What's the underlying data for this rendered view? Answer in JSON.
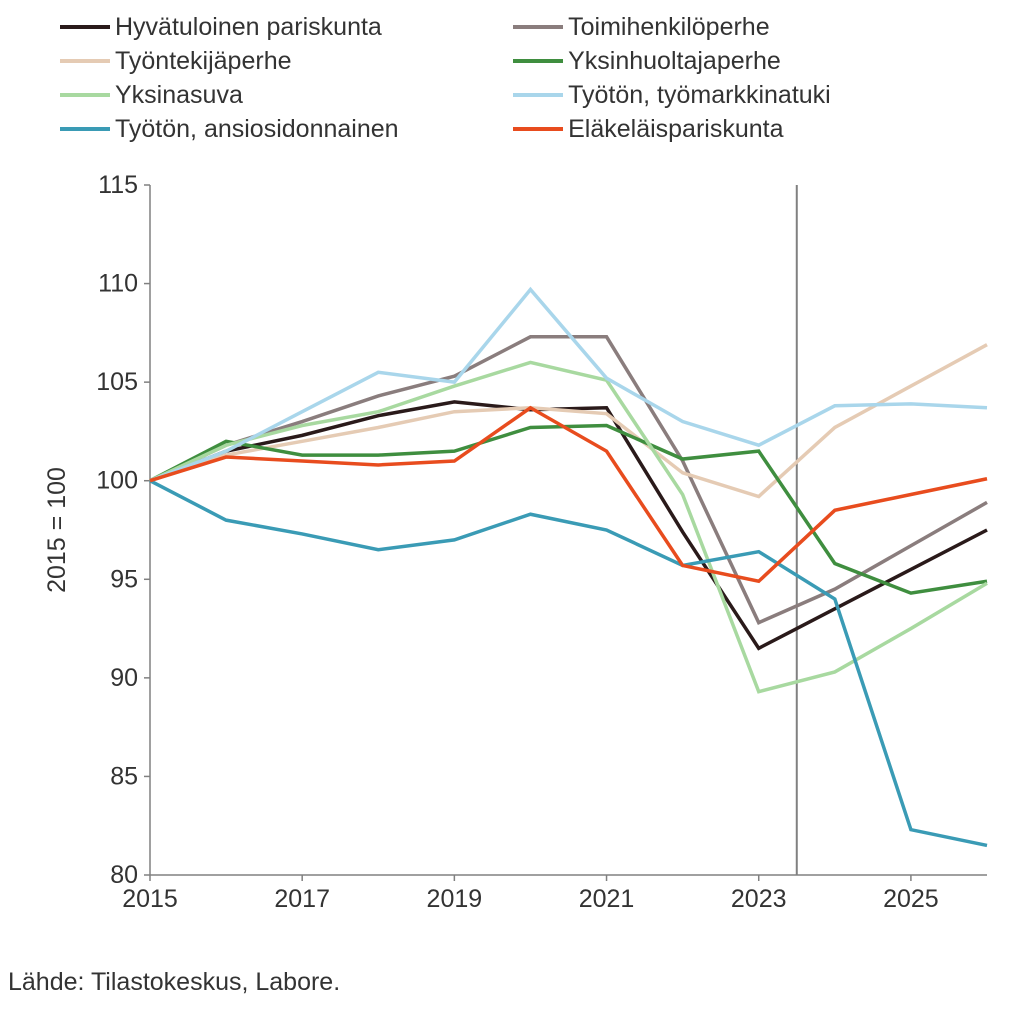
{
  "chart": {
    "type": "line",
    "background_color": "#ffffff",
    "axis_color": "#808080",
    "text_color": "#333333",
    "y_axis_title": "2015 = 100",
    "label_fontsize": 25,
    "x": {
      "min": 2015,
      "max": 2026,
      "ticks": [
        2015,
        2017,
        2019,
        2021,
        2023,
        2025
      ]
    },
    "y": {
      "min": 80,
      "max": 115,
      "ticks": [
        80,
        85,
        90,
        95,
        100,
        105,
        110,
        115
      ]
    },
    "reference_line_x": 2023.5,
    "series": [
      {
        "name": "Hyvätuloinen pariskunta",
        "color": "#2a1a1a",
        "data": [
          [
            2015,
            100
          ],
          [
            2016,
            101.5
          ],
          [
            2017,
            102.3
          ],
          [
            2018,
            103.3
          ],
          [
            2019,
            104.0
          ],
          [
            2020,
            103.6
          ],
          [
            2021,
            103.7
          ],
          [
            2022,
            97.4
          ],
          [
            2023,
            91.5
          ],
          [
            2024,
            93.5
          ],
          [
            2025,
            95.5
          ],
          [
            2026,
            97.5
          ]
        ]
      },
      {
        "name": "Toimihenkilöperhe",
        "color": "#8a7d7d",
        "data": [
          [
            2015,
            100
          ],
          [
            2016,
            101.8
          ],
          [
            2017,
            103.0
          ],
          [
            2018,
            104.3
          ],
          [
            2019,
            105.3
          ],
          [
            2020,
            107.3
          ],
          [
            2021,
            107.3
          ],
          [
            2022,
            101.0
          ],
          [
            2023,
            92.8
          ],
          [
            2024,
            94.5
          ],
          [
            2025,
            96.7
          ],
          [
            2026,
            98.9
          ]
        ]
      },
      {
        "name": "Työntekijäperhe",
        "color": "#e5cbb4",
        "data": [
          [
            2015,
            100
          ],
          [
            2016,
            101.3
          ],
          [
            2017,
            102.0
          ],
          [
            2018,
            102.7
          ],
          [
            2019,
            103.5
          ],
          [
            2020,
            103.7
          ],
          [
            2021,
            103.4
          ],
          [
            2022,
            100.4
          ],
          [
            2023,
            99.2
          ],
          [
            2024,
            102.7
          ],
          [
            2025,
            104.8
          ],
          [
            2026,
            106.9
          ]
        ]
      },
      {
        "name": "Yksinhuoltajaperhe",
        "color": "#3f8e3f",
        "data": [
          [
            2015,
            100
          ],
          [
            2016,
            102.0
          ],
          [
            2017,
            101.3
          ],
          [
            2018,
            101.3
          ],
          [
            2019,
            101.5
          ],
          [
            2020,
            102.7
          ],
          [
            2021,
            102.8
          ],
          [
            2022,
            101.1
          ],
          [
            2023,
            101.5
          ],
          [
            2024,
            95.8
          ],
          [
            2025,
            94.3
          ],
          [
            2026,
            94.9
          ]
        ]
      },
      {
        "name": "Yksinasuva",
        "color": "#a8d9a0",
        "data": [
          [
            2015,
            100
          ],
          [
            2016,
            101.8
          ],
          [
            2017,
            102.8
          ],
          [
            2018,
            103.5
          ],
          [
            2019,
            104.8
          ],
          [
            2020,
            106.0
          ],
          [
            2021,
            105.1
          ],
          [
            2022,
            99.3
          ],
          [
            2023,
            89.3
          ],
          [
            2024,
            90.3
          ],
          [
            2025,
            92.5
          ],
          [
            2026,
            94.8
          ]
        ]
      },
      {
        "name": "Työtön, työmarkkinatuki",
        "color": "#a9d6eb",
        "data": [
          [
            2015,
            100
          ],
          [
            2016,
            101.5
          ],
          [
            2017,
            103.5
          ],
          [
            2018,
            105.5
          ],
          [
            2019,
            105.0
          ],
          [
            2020,
            109.7
          ],
          [
            2021,
            105.2
          ],
          [
            2022,
            103.0
          ],
          [
            2023,
            101.8
          ],
          [
            2024,
            103.8
          ],
          [
            2025,
            103.9
          ],
          [
            2026,
            103.7
          ]
        ]
      },
      {
        "name": "Työtön, ansiosidonnainen",
        "color": "#3a9bb5",
        "data": [
          [
            2015,
            100
          ],
          [
            2016,
            98.0
          ],
          [
            2017,
            97.3
          ],
          [
            2018,
            96.5
          ],
          [
            2019,
            97.0
          ],
          [
            2020,
            98.3
          ],
          [
            2021,
            97.5
          ],
          [
            2022,
            95.7
          ],
          [
            2023,
            96.4
          ],
          [
            2024,
            94.0
          ],
          [
            2025,
            82.3
          ],
          [
            2026,
            81.5
          ]
        ]
      },
      {
        "name": "Eläkeläispariskunta",
        "color": "#e84c1e",
        "data": [
          [
            2015,
            100
          ],
          [
            2016,
            101.2
          ],
          [
            2017,
            101.0
          ],
          [
            2018,
            100.8
          ],
          [
            2019,
            101.0
          ],
          [
            2020,
            103.7
          ],
          [
            2021,
            101.5
          ],
          [
            2022,
            95.7
          ],
          [
            2023,
            94.9
          ],
          [
            2024,
            98.5
          ],
          [
            2025,
            99.3
          ],
          [
            2026,
            100.1
          ]
        ]
      }
    ]
  },
  "source_label": "Lähde: Tilastokeskus, Labore."
}
